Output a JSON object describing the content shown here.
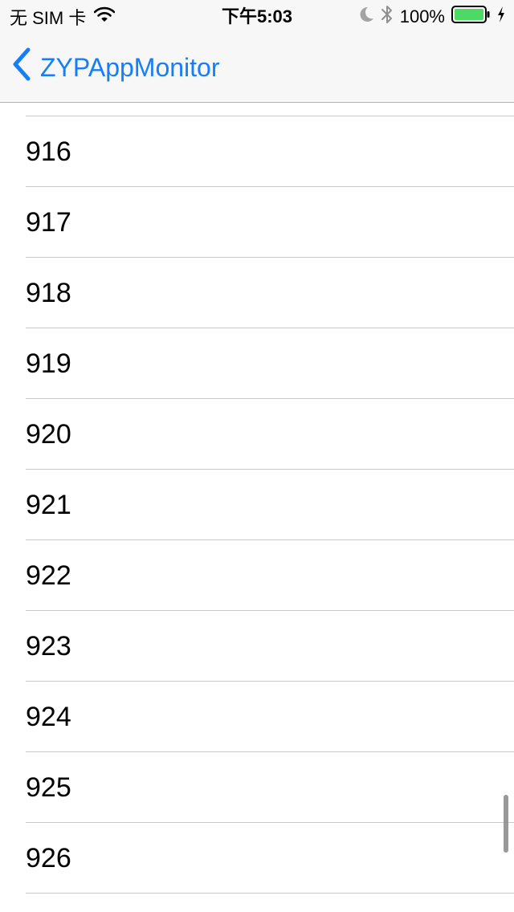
{
  "status_bar": {
    "carrier": "无 SIM 卡",
    "time": "下午5:03",
    "battery_percent": "100%",
    "battery_level": 1.0,
    "icons": [
      "wifi-icon",
      "moon-icon",
      "bluetooth-icon",
      "battery-icon",
      "charging-icon"
    ]
  },
  "navbar": {
    "back_label": "ZYPAppMonitor"
  },
  "list": {
    "rows": [
      "916",
      "917",
      "918",
      "919",
      "920",
      "921",
      "922",
      "923",
      "924",
      "925",
      "926"
    ]
  },
  "colors": {
    "accent": "#157efb",
    "battery": "#4cd964",
    "separator": "#c8c7cc"
  }
}
